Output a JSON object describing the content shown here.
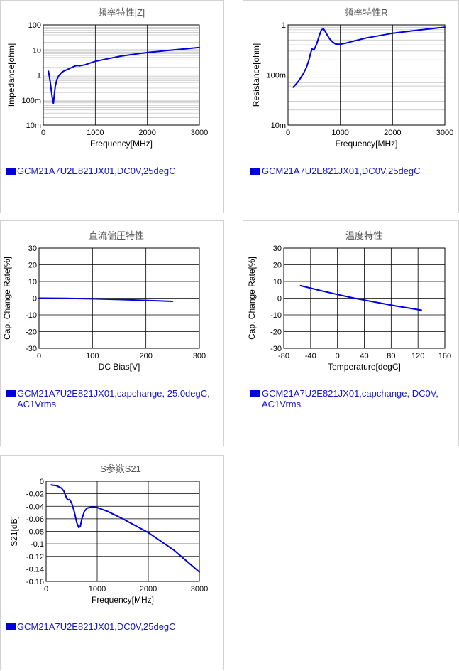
{
  "colors": {
    "series": "#0000dd",
    "grid_major": "#000000",
    "grid_minor": "#bdbdbd"
  },
  "chart_data": [
    {
      "id": "impedance",
      "type": "line",
      "title": "頻率特性|Z|",
      "xlabel": "Frequency[MHz]",
      "ylabel": "Impedance[ohm]",
      "xlim": [
        0,
        3000
      ],
      "ylim": [
        0.01,
        100
      ],
      "yscale": "log",
      "grid": true,
      "xticks": [
        0,
        1000,
        2000,
        3000
      ],
      "xtick_labels": [
        "0",
        "1000",
        "2000",
        "3000"
      ],
      "yticks": [
        0.01,
        0.1,
        1,
        10,
        100
      ],
      "ytick_labels": [
        "10m",
        "100m",
        "1",
        "10",
        "100"
      ],
      "legend": "GCM21A7U2E821JX01,DC0V,25degC",
      "legend_position": "bottom-left",
      "series": [
        {
          "name": "GCM21A7U2E821JX01,DC0V,25degC",
          "x": [
            100,
            130,
            160,
            180,
            195,
            210,
            230,
            260,
            300,
            350,
            400,
            500,
            600,
            650,
            700,
            800,
            900,
            1000,
            1200,
            1500,
            1800,
            2000,
            2500,
            3000
          ],
          "y": [
            1.4,
            0.6,
            0.2,
            0.1,
            0.075,
            0.15,
            0.35,
            0.65,
            0.95,
            1.25,
            1.45,
            1.8,
            2.25,
            2.4,
            2.3,
            2.55,
            3.0,
            3.5,
            4.3,
            5.7,
            7.0,
            7.9,
            10.0,
            12.5
          ]
        }
      ]
    },
    {
      "id": "resistance",
      "type": "line",
      "title": "頻率特性R",
      "xlabel": "Frequency[MHz]",
      "ylabel": "Resistance[ohm]",
      "xlim": [
        0,
        3000
      ],
      "ylim": [
        0.01,
        1
      ],
      "yscale": "log",
      "grid": true,
      "xticks": [
        0,
        1000,
        2000,
        3000
      ],
      "xtick_labels": [
        "0",
        "1000",
        "2000",
        "3000"
      ],
      "yticks": [
        0.01,
        0.1,
        1
      ],
      "ytick_labels": [
        "10m",
        "100m",
        "1"
      ],
      "legend": "GCM21A7U2E821JX01,DC0V,25degC",
      "legend_position": "bottom-left",
      "series": [
        {
          "name": "GCM21A7U2E821JX01,DC0V,25degC",
          "x": [
            100,
            150,
            200,
            250,
            300,
            350,
            400,
            430,
            460,
            500,
            550,
            600,
            640,
            680,
            720,
            760,
            800,
            850,
            900,
            950,
            1000,
            1100,
            1200,
            1500,
            2000,
            2500,
            3000
          ],
          "y": [
            0.057,
            0.065,
            0.075,
            0.09,
            0.11,
            0.14,
            0.2,
            0.27,
            0.33,
            0.32,
            0.42,
            0.62,
            0.8,
            0.83,
            0.72,
            0.6,
            0.52,
            0.46,
            0.42,
            0.41,
            0.41,
            0.43,
            0.46,
            0.55,
            0.68,
            0.79,
            0.9
          ]
        }
      ]
    },
    {
      "id": "dcbias",
      "type": "line",
      "title": "直流偏圧特性",
      "xlabel": "DC Bias[V]",
      "ylabel": "Cap. Change Rate[%]",
      "xlim": [
        0,
        300
      ],
      "ylim": [
        -30,
        30
      ],
      "yscale": "linear",
      "grid": true,
      "xticks": [
        0,
        100,
        200,
        300
      ],
      "xtick_labels": [
        "0",
        "100",
        "200",
        "300"
      ],
      "yticks": [
        -30,
        -20,
        -10,
        0,
        10,
        20,
        30
      ],
      "ytick_labels": [
        "-30",
        "-20",
        "-10",
        "0",
        "10",
        "20",
        "30"
      ],
      "legend": "GCM21A7U2E821JX01,capchange, 25.0degC, AC1Vrms",
      "legend_position": "bottom-left",
      "series": [
        {
          "name": "GCM21A7U2E821JX01,capchange, 25.0degC, AC1Vrms",
          "x": [
            0,
            50,
            100,
            150,
            200,
            250
          ],
          "y": [
            0,
            -0.1,
            -0.4,
            -0.8,
            -1.3,
            -1.9
          ]
        }
      ]
    },
    {
      "id": "temperature",
      "type": "line",
      "title": "温度特性",
      "xlabel": "Temperature[degC]",
      "ylabel": "Cap. Change Rate[%]",
      "xlim": [
        -80,
        160
      ],
      "ylim": [
        -30,
        30
      ],
      "yscale": "linear",
      "grid": true,
      "xticks": [
        -80,
        -40,
        0,
        40,
        80,
        120,
        160
      ],
      "xtick_labels": [
        "-80",
        "-40",
        "0",
        "40",
        "80",
        "120",
        "160"
      ],
      "yticks": [
        -30,
        -20,
        -10,
        0,
        10,
        20,
        30
      ],
      "ytick_labels": [
        "-30",
        "-20",
        "-10",
        "0",
        "10",
        "20",
        "30"
      ],
      "legend": "GCM21A7U2E821JX01,capchange, DC0V, AC1Vrms",
      "legend_position": "bottom-left",
      "series": [
        {
          "name": "GCM21A7U2E821JX01,capchange, DC0V, AC1Vrms",
          "x": [
            -55,
            -25,
            0,
            25,
            50,
            85,
            125
          ],
          "y": [
            7.5,
            4.5,
            2.2,
            0,
            -1.9,
            -4.5,
            -7.2
          ]
        }
      ]
    },
    {
      "id": "s21",
      "type": "line",
      "title": "S参数S21",
      "xlabel": "Frequency[MHz]",
      "ylabel": "S21[dB]",
      "xlim": [
        0,
        3000
      ],
      "ylim": [
        -0.16,
        0
      ],
      "yscale": "linear",
      "grid": true,
      "xticks": [
        0,
        1000,
        2000,
        3000
      ],
      "xtick_labels": [
        "0",
        "1000",
        "2000",
        "3000"
      ],
      "yticks": [
        -0.16,
        -0.14,
        -0.12,
        -0.1,
        -0.08,
        -0.06,
        -0.04,
        -0.02,
        0
      ],
      "ytick_labels": [
        "-0.16",
        "-0.14",
        "-0.12",
        "-0.1",
        "-0.08",
        "-0.06",
        "-0.04",
        "-0.02",
        "0"
      ],
      "legend": "GCM21A7U2E821JX01,DC0V,25degC",
      "legend_position": "bottom-left",
      "series": [
        {
          "name": "GCM21A7U2E821JX01,DC0V,25degC",
          "x": [
            100,
            200,
            300,
            350,
            400,
            430,
            460,
            500,
            550,
            600,
            640,
            670,
            700,
            750,
            800,
            850,
            900,
            1000,
            1200,
            1500,
            2000,
            2500,
            3000
          ],
          "y": [
            -0.006,
            -0.007,
            -0.011,
            -0.016,
            -0.027,
            -0.03,
            -0.029,
            -0.035,
            -0.048,
            -0.066,
            -0.074,
            -0.072,
            -0.06,
            -0.048,
            -0.043,
            -0.042,
            -0.041,
            -0.042,
            -0.048,
            -0.06,
            -0.082,
            -0.11,
            -0.145
          ]
        }
      ]
    }
  ]
}
